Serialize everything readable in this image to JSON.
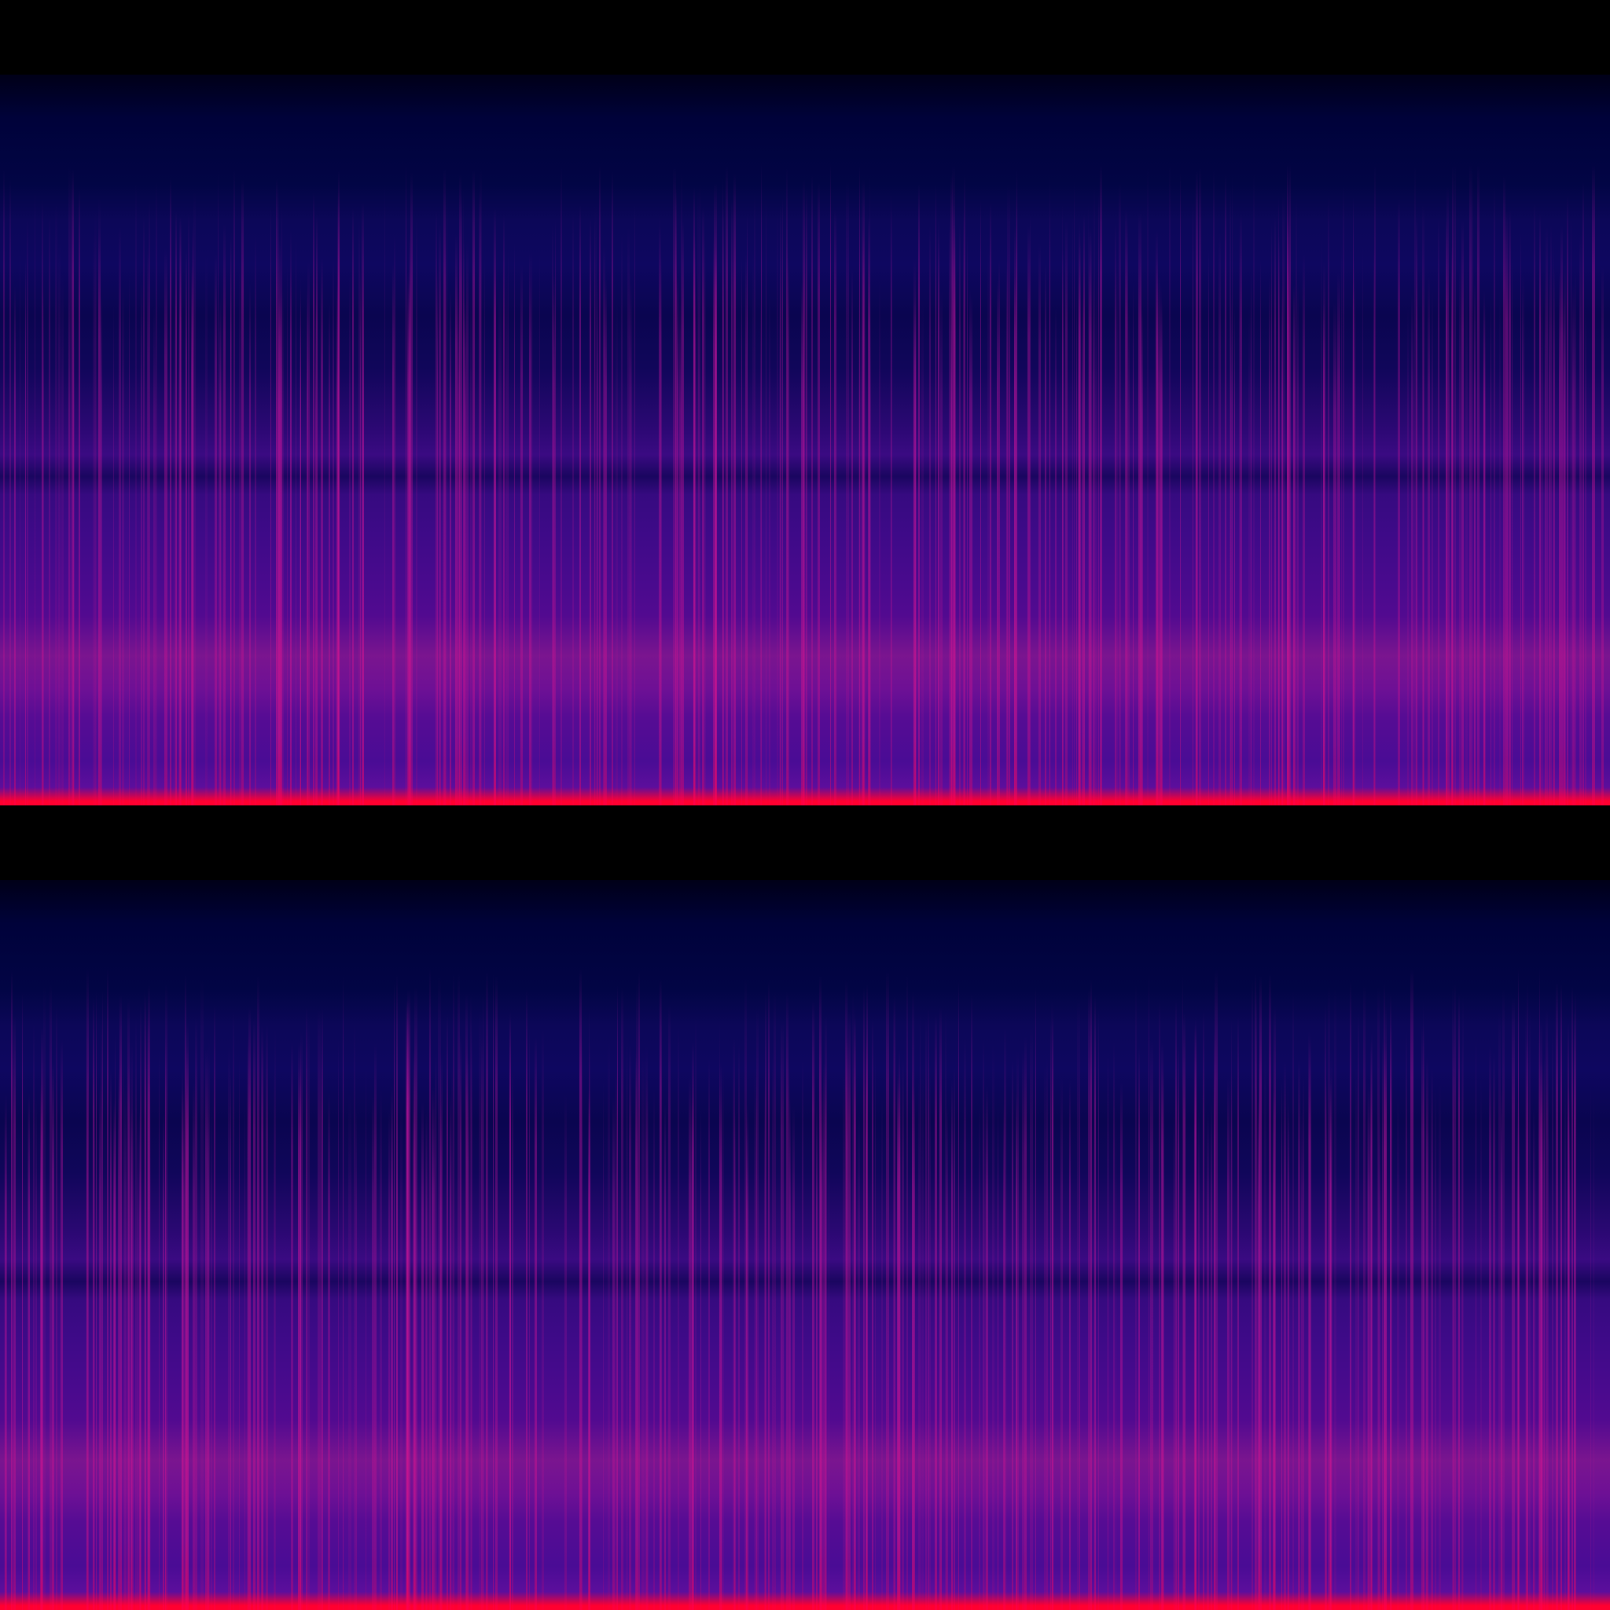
{
  "spectrogram": {
    "channels": 2,
    "colors": {
      "background": "#000000",
      "low": "#000033",
      "mid": "#4a0a8e",
      "high": "#8a1a9a",
      "peak": "#ff0030"
    }
  }
}
